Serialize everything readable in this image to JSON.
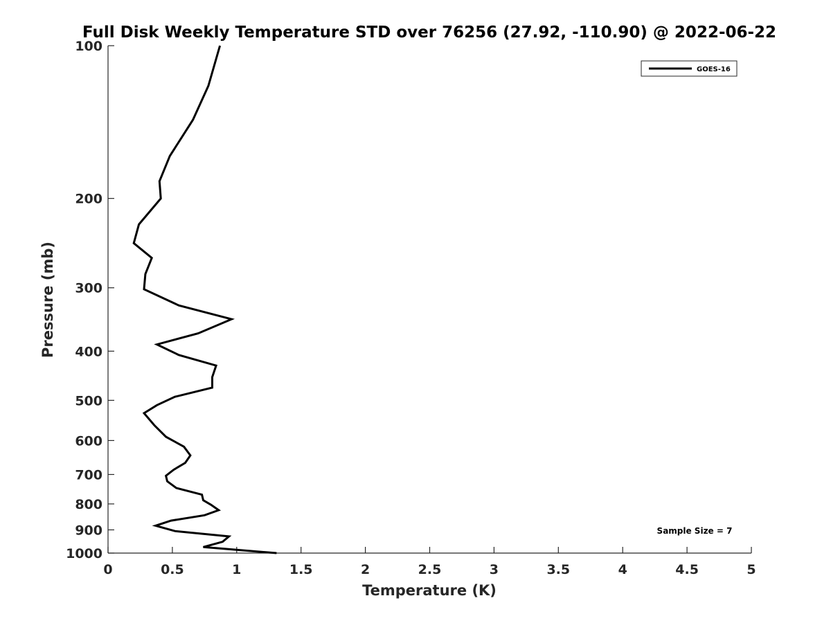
{
  "chart_data": {
    "type": "line",
    "title": "Full Disk Weekly Temperature STD over 76256 (27.92, -110.90) @ 2022-06-22",
    "xlabel": "Temperature (K)",
    "ylabel": "Pressure (mb)",
    "xlim": [
      0,
      5
    ],
    "ylim": [
      100,
      1000
    ],
    "y_scale": "log",
    "y_reversed": true,
    "x_ticks": [
      "0",
      "0.5",
      "1",
      "1.5",
      "2",
      "2.5",
      "3",
      "3.5",
      "4",
      "4.5",
      "5"
    ],
    "y_ticks": [
      "100",
      "200",
      "300",
      "400",
      "500",
      "600",
      "700",
      "800",
      "900",
      "1000"
    ],
    "grid": false,
    "legend_position": "top-right",
    "series": [
      {
        "name": "GOES-16",
        "color": "#000000",
        "x": [
          0.87,
          0.78,
          0.66,
          0.48,
          0.4,
          0.41,
          0.24,
          0.2,
          0.34,
          0.29,
          0.28,
          0.55,
          0.96,
          0.7,
          0.38,
          0.55,
          0.84,
          0.81,
          0.81,
          0.52,
          0.38,
          0.28,
          0.36,
          0.45,
          0.59,
          0.64,
          0.6,
          0.51,
          0.45,
          0.46,
          0.53,
          0.73,
          0.74,
          0.8,
          0.86,
          0.75,
          0.49,
          0.37,
          0.52,
          0.94,
          0.89,
          0.74,
          1.31
        ],
        "y": [
          100,
          120,
          140,
          165,
          185,
          200,
          225,
          245,
          262,
          282,
          302,
          325,
          346,
          369,
          388,
          407,
          427,
          450,
          472,
          492,
          511,
          530,
          560,
          590,
          617,
          642,
          664,
          685,
          704,
          722,
          744,
          767,
          787,
          803,
          823,
          842,
          863,
          883,
          905,
          927,
          950,
          973,
          1000
        ]
      }
    ],
    "annotations": [
      "Sample Size = 7"
    ]
  },
  "colors": {
    "background": "#ffffff",
    "axes": "#262626",
    "series": "#000000"
  }
}
